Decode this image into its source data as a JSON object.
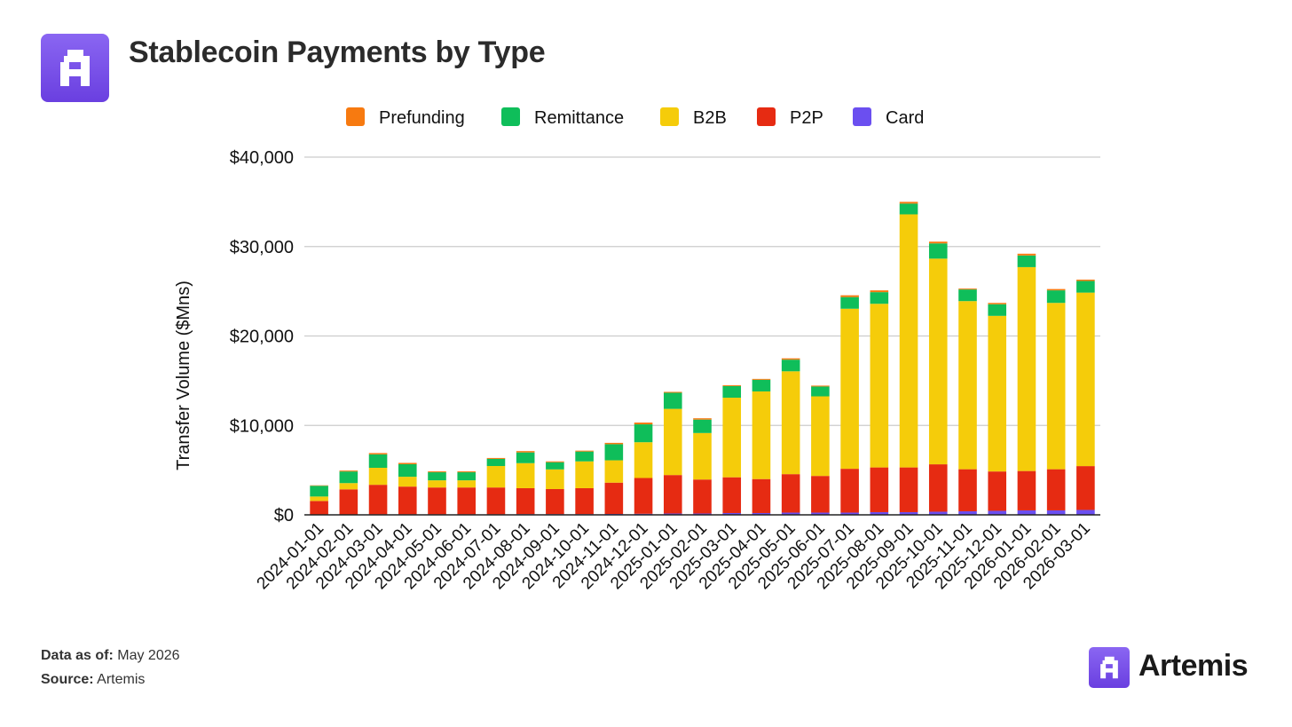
{
  "header": {
    "title": "Stablecoin Payments by Type",
    "logo_icon": "artemis-logo-icon"
  },
  "chart_data": {
    "type": "bar",
    "stacked": true,
    "title": "Stablecoin Payments by Type",
    "xlabel": "",
    "ylabel": "Transfer Volume ($Mns)",
    "ylim": [
      0,
      40000
    ],
    "yticks": [
      0,
      10000,
      20000,
      30000,
      40000
    ],
    "ytick_labels": [
      "$0",
      "$10,000",
      "$20,000",
      "$30,000",
      "$40,000"
    ],
    "grid": true,
    "legend_position": "top",
    "categories": [
      "2024-01-01",
      "2024-02-01",
      "2024-03-01",
      "2024-04-01",
      "2024-05-01",
      "2024-06-01",
      "2024-07-01",
      "2024-08-01",
      "2024-09-01",
      "2024-10-01",
      "2024-11-01",
      "2024-12-01",
      "2025-01-01",
      "2025-02-01",
      "2025-03-01",
      "2025-04-01",
      "2025-05-01",
      "2025-06-01",
      "2025-07-01",
      "2025-08-01",
      "2025-09-01",
      "2025-10-01",
      "2025-11-01",
      "2025-12-01",
      "2026-01-01",
      "2026-02-01",
      "2026-03-01"
    ],
    "series": [
      {
        "name": "Card",
        "color": "#6b4ff0",
        "values": [
          50,
          50,
          60,
          60,
          60,
          60,
          60,
          80,
          80,
          80,
          100,
          120,
          150,
          150,
          200,
          200,
          250,
          250,
          250,
          300,
          300,
          350,
          400,
          450,
          500,
          500,
          550
        ]
      },
      {
        "name": "P2P",
        "color": "#e62b12",
        "values": [
          1500,
          2800,
          3300,
          3100,
          3000,
          3000,
          3000,
          2900,
          2800,
          2900,
          3500,
          4000,
          4300,
          3800,
          4000,
          3800,
          4300,
          4100,
          4900,
          5000,
          5000,
          5300,
          4700,
          4400,
          4400,
          4600,
          4900
        ]
      },
      {
        "name": "B2B",
        "color": "#f5cc0a",
        "values": [
          500,
          700,
          1900,
          1100,
          800,
          800,
          2400,
          2800,
          2200,
          3000,
          2500,
          4000,
          7400,
          5200,
          8900,
          9800,
          11500,
          8900,
          17900,
          18300,
          28300,
          23000,
          18800,
          17400,
          22800,
          18600,
          19400
        ]
      },
      {
        "name": "Remittance",
        "color": "#0fbe5a",
        "values": [
          1200,
          1300,
          1500,
          1400,
          900,
          900,
          800,
          1200,
          800,
          1100,
          1800,
          2000,
          1800,
          1500,
          1300,
          1300,
          1300,
          1100,
          1300,
          1300,
          1200,
          1700,
          1300,
          1300,
          1300,
          1400,
          1300
        ]
      },
      {
        "name": "Prefunding",
        "color": "#f77a10",
        "values": [
          50,
          100,
          150,
          150,
          100,
          100,
          100,
          150,
          100,
          100,
          150,
          200,
          100,
          150,
          100,
          100,
          150,
          100,
          200,
          200,
          200,
          200,
          100,
          150,
          200,
          150,
          150
        ]
      }
    ],
    "legend_order": [
      "Prefunding",
      "Remittance",
      "B2B",
      "P2P",
      "Card"
    ]
  },
  "footer": {
    "data_as_of_label": "Data as of:",
    "data_as_of_value": "May 2026",
    "source_label": "Source:",
    "source_value": "Artemis"
  },
  "brand": {
    "name": "Artemis",
    "logo_icon": "artemis-logo-icon"
  }
}
